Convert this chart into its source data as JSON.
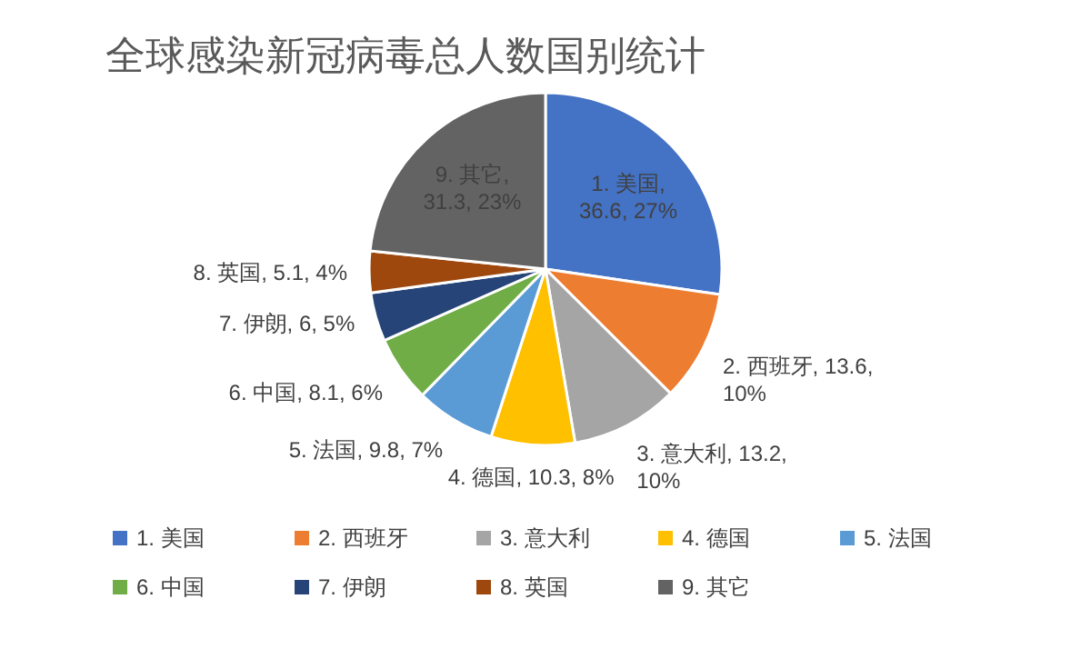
{
  "chart_data": {
    "type": "pie",
    "title": "全球感染新冠病毒总人数国别统计",
    "categories": [
      "1. 美国",
      "2. 西班牙",
      "3. 意大利",
      "4. 德国",
      "5. 法国",
      "6. 中国",
      "7. 伊朗",
      "8. 英国",
      "9. 其它"
    ],
    "values": [
      36.6,
      13.6,
      13.2,
      10.3,
      9.8,
      8.1,
      6,
      5.1,
      31.3
    ],
    "value_labels": [
      "1. 美国, 36.6, 27%",
      "2. 西班牙, 13.6, 10%",
      "3. 意大利, 13.2, 10%",
      "4. 德国, 10.3, 8%",
      "5. 法国, 9.8, 7%",
      "6. 中国, 8.1, 6%",
      "7. 伊朗, 6, 5%",
      "8. 英国, 5.1, 4%",
      "9. 其它, 31.3, 23%"
    ],
    "colors": [
      "#4472c4",
      "#ed7d31",
      "#a5a5a5",
      "#ffc000",
      "#5b9bd5",
      "#70ad47",
      "#264478",
      "#9e480e",
      "#636363"
    ],
    "legend": "bottom"
  }
}
